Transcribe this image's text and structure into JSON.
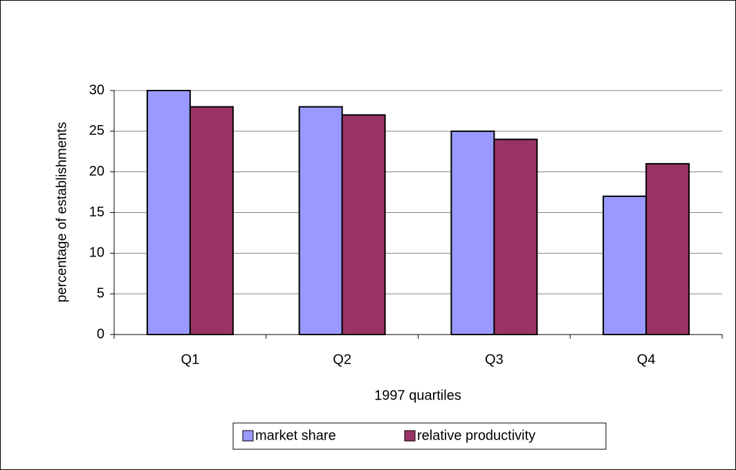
{
  "chart_data": {
    "type": "bar",
    "x_label": "1997 quartiles",
    "y_label": "percentage of establishments",
    "categories": [
      "Q1",
      "Q2",
      "Q3",
      "Q4"
    ],
    "series": [
      {
        "name": "market share",
        "color": "#9999ff",
        "values": [
          30,
          28,
          25,
          17
        ]
      },
      {
        "name": "relative productivity",
        "color": "#993366",
        "values": [
          28,
          27,
          24,
          21
        ]
      }
    ],
    "ylim": [
      0,
      30
    ],
    "yticks": [
      0,
      5,
      10,
      15,
      20,
      25,
      30
    ],
    "grid": true,
    "legend": "bottom"
  }
}
